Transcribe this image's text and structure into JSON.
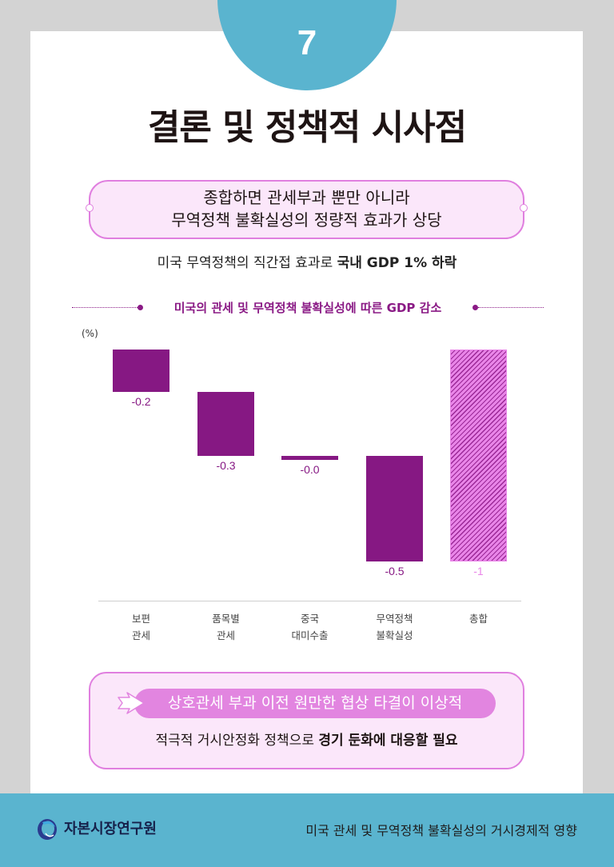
{
  "page": {
    "number": "7",
    "title": "결론 및 정책적 시사점"
  },
  "summary": {
    "line1": "종합하면 관세부과 뿐만 아니라",
    "line2": "무역정책 불확실성의 정량적 효과가 상당"
  },
  "subline": {
    "normal": "미국 무역정책의 직간접 효과로 ",
    "bold": "국내 GDP 1% 하락"
  },
  "chart_data": {
    "type": "bar",
    "title": "미국의 관세 및 무역정책 불확실성에 따른 GDP 감소",
    "subtitle": "",
    "xlabel": "",
    "ylabel": "(%)",
    "categories": [
      "보편\n관세",
      "품목별\n관세",
      "중국\n대미수출",
      "무역정책\n불확실성",
      "총합"
    ],
    "values": [
      -0.2,
      -0.3,
      -0.0,
      -0.5,
      -1
    ],
    "value_labels": [
      "-0.2",
      "-0.3",
      "-0.0",
      "-0.5",
      "-1"
    ],
    "layout": "waterfall",
    "bars": [
      {
        "start": 0.0,
        "end": -0.2
      },
      {
        "start": -0.2,
        "end": -0.5
      },
      {
        "start": -0.5,
        "end": -0.5
      },
      {
        "start": -0.5,
        "end": -1.0
      },
      {
        "start": 0.0,
        "end": -1.0
      }
    ],
    "ylim": [
      -1,
      0
    ],
    "grid": false,
    "legend": "none",
    "colors": {
      "component": "#861883",
      "total": "#e985e8",
      "total_pattern": "diagonal-hatch"
    }
  },
  "action": {
    "highlight": "상호관세 부과 이전 원만한 협상 타결이 이상적",
    "normal": "적극적 거시안정화 정책으로 ",
    "bold": "경기 둔화에 대응할 필요"
  },
  "footer": {
    "org": "자본시장연구원",
    "report_title": "미국 관세 및 무역정책 불확실성의 거시경제적 영향"
  },
  "colors": {
    "accent_blue": "#5ab4cf",
    "accent_purple": "#861883",
    "accent_pink": "#e285e0",
    "box_fill": "#fbe7fa"
  }
}
